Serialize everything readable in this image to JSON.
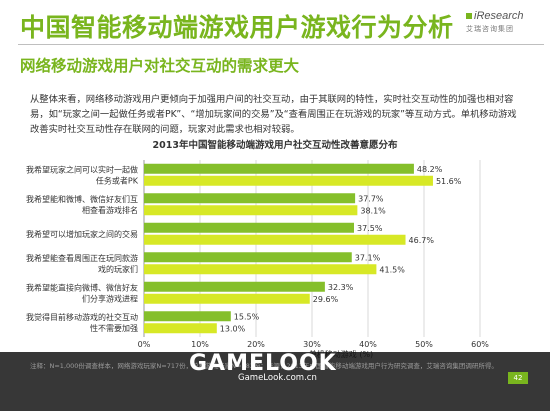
{
  "header": {
    "title": "中国智能移动端游戏用户游戏行为分析",
    "subtitle": "网络移动游戏用户对社交互动的需求更大",
    "logo_text": "iResearch",
    "logo_sub": "艾瑞咨询集团"
  },
  "description": "从整体来看，网络移动游戏用户更倾向于加强用户间的社交互动，由于其联网的特性，实时社交互动性的加强也相对容易，如“玩家之间一起做任务或者PK”、“增加玩家间的交易”及“查看周围正在玩游戏的玩家”等互动方式。单机移动游戏改善实时社交互动性存在联网的问题，玩家对此需求也相对较弱。",
  "chart_data": {
    "type": "bar",
    "orientation": "horizontal",
    "title": "2013年中国智能移动端游戏用户社交互动性改善意愿分布",
    "xlabel": "单机移动游戏 (%)",
    "xlim": [
      0,
      60
    ],
    "x_ticks": [
      "0%",
      "10%",
      "20%",
      "30%",
      "40%",
      "50%",
      "60%"
    ],
    "categories": [
      [
        "我希望玩家之间可以实时一起做",
        "任务或者PK"
      ],
      [
        "我希望能和微博、微信好友们互",
        "相查看游戏排名"
      ],
      [
        "我希望可以增加玩家之间的交易"
      ],
      [
        "我希望能查看周围正在玩同款游",
        "戏的玩家们"
      ],
      [
        "我希望能直接向微博、微信好友",
        "们分享游戏进程"
      ],
      [
        "我觉得目前移动游戏的社交互动",
        "性不需要加强"
      ]
    ],
    "series": [
      {
        "values": [
          48.2,
          37.7,
          37.5,
          37.1,
          32.3,
          15.5
        ],
        "labels": [
          "48.2%",
          "37.7%",
          "37.5%",
          "37.1%",
          "32.3%",
          "15.5%"
        ],
        "color": "#85bf2b"
      },
      {
        "values": [
          51.6,
          38.1,
          46.7,
          41.5,
          29.6,
          13.0
        ],
        "labels": [
          "51.6%",
          "38.1%",
          "46.7%",
          "41.5%",
          "29.6%",
          "13.0%"
        ],
        "color": "#d7e826"
      }
    ],
    "grid": true
  },
  "footer": {
    "note": "注释：N=1,000份调查样本，网络游戏玩家N=717份，单机游戏玩家N=283份；来源：2013年中国智能移动端游戏用户行为研究调查，艾瑞咨询集团调研所得。",
    "watermark": "GAMELOOK",
    "watermark_site": "GameLook.com.cn",
    "page_number": "42"
  }
}
